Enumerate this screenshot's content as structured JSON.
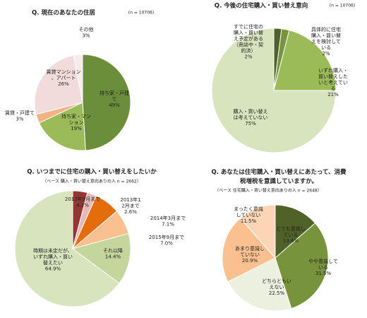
{
  "chart_data": [
    {
      "type": "pie",
      "title": "Q. 現在のあなたの住居",
      "subtitle": "(n = 10706)",
      "categories": [
        "持ち家・戸建て",
        "持ち家・マンション",
        "賃貸・戸建て",
        "賃貸マンション、アパート",
        "その他"
      ],
      "values": [
        49,
        19,
        3,
        26,
        3
      ],
      "value_labels": [
        "49%",
        "19%",
        "3%",
        "26%",
        "3%"
      ],
      "colors": [
        "#6b8e3a",
        "#9bbb59",
        "#f4b183",
        "#f2dcdb",
        "#f7ecec"
      ]
    },
    {
      "type": "pie",
      "title": "Q. 今後の住宅購入・買い替え意向",
      "subtitle": "(n = 10706)",
      "categories": [
        "すでに住宅の購入・買い替え予定がある（商談中・契約済）",
        "具体的に住宅購入・買い替えを検討している",
        "いずれ購入・買い替えしたいと考えている",
        "購入・買い替えは考えていない"
      ],
      "values": [
        2,
        2,
        21,
        75
      ],
      "value_labels": [
        "2%",
        "2%",
        "21%",
        "75%"
      ],
      "colors": [
        "#4f6228",
        "#77933c",
        "#9bbb59",
        "#d7e4bd"
      ]
    },
    {
      "type": "pie",
      "title": "Q. いつまでに住宅の購入・買い替えをしたいか",
      "subtitle": "（ベース 購入・買い替え意向ありの人 n = 2662）",
      "categories": [
        "2013年9月まで",
        "2013年12月まで",
        "2014年3月まで",
        "2015年9月まで",
        "それ以降",
        "時期は未定だが、いずれ購入・買い替えたい"
      ],
      "values": [
        4.1,
        2.6,
        7.1,
        7.0,
        14.4,
        64.9
      ],
      "value_labels": [
        "4.1%",
        "2.6%",
        "7.1%",
        "7.0%",
        "14.4%",
        "64.9%"
      ],
      "colors": [
        "#963634",
        "#e6b9b8",
        "#e46c0a",
        "#fac090",
        "#c3d69b",
        "#d7e4bd"
      ]
    },
    {
      "type": "pie",
      "title": "Q. あなたは住宅購入・買い替えにあたって、消費税増税を意識していますか。",
      "subtitle": "（ベース 住宅購入・買い替え意向ありの人 n = 2648）",
      "categories": [
        "とても意識している",
        "やや意識している",
        "どちらともいえない",
        "あまり意識していない",
        "まったく意識していない"
      ],
      "values": [
        13.6,
        31.5,
        22.5,
        20.9,
        11.5
      ],
      "value_labels": [
        "13.6%",
        "31.5%",
        "22.5%",
        "20.9%",
        "11.5%"
      ],
      "colors": [
        "#4f6228",
        "#77933c",
        "#ebf1de",
        "#fac090",
        "#fcd5b4"
      ]
    }
  ]
}
